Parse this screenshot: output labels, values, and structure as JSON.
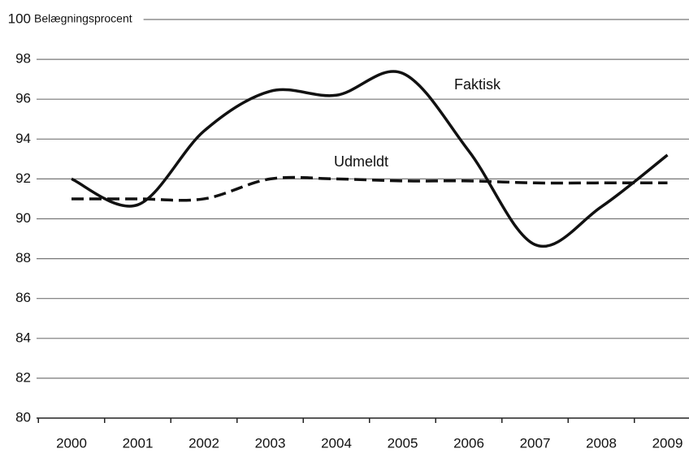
{
  "chart_data": {
    "type": "line",
    "y_label": "Belægningsprocent",
    "categories": [
      "2000",
      "2001",
      "2002",
      "2003",
      "2004",
      "2005",
      "2006",
      "2007",
      "2008",
      "2009"
    ],
    "series": [
      {
        "name": "Faktisk",
        "color": "#111111",
        "style": "solid",
        "smooth": true,
        "values": [
          92.0,
          90.7,
          94.4,
          96.4,
          96.2,
          97.3,
          93.4,
          88.7,
          90.6,
          93.2
        ]
      },
      {
        "name": "Udmeldt",
        "color": "#111111",
        "style": "dashed",
        "smooth": true,
        "values": [
          91.0,
          91.0,
          91.0,
          92.0,
          92.0,
          91.9,
          91.9,
          91.8,
          91.8,
          91.8
        ]
      }
    ],
    "ylim": [
      80,
      100
    ],
    "yticks": [
      80,
      82,
      84,
      86,
      88,
      90,
      92,
      94,
      96,
      98,
      100
    ],
    "grid": true
  }
}
